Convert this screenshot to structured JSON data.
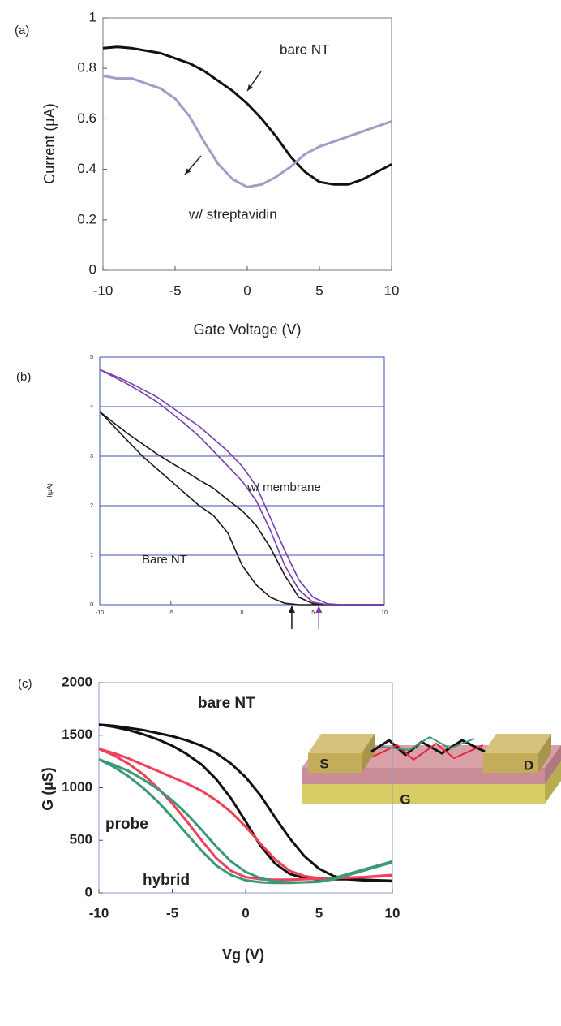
{
  "chart_data": [
    {
      "type": "line",
      "label": "(a)",
      "xlabel": "Gate Voltage (V)",
      "ylabel": "Current (µA)",
      "x": [
        -10,
        -9,
        -8,
        -7,
        -6,
        -5,
        -4,
        -3,
        -2,
        -1,
        0,
        1,
        2,
        3,
        4,
        5,
        6,
        7,
        8,
        9,
        10
      ],
      "series": [
        {
          "color": "#111111",
          "values": [
            0.88,
            0.885,
            0.88,
            0.87,
            0.86,
            0.84,
            0.82,
            0.79,
            0.75,
            0.71,
            0.66,
            0.6,
            0.53,
            0.45,
            0.39,
            0.35,
            0.34,
            0.34,
            0.36,
            0.39,
            0.42
          ]
        },
        {
          "color": "#a79ac4",
          "values": [
            0.77,
            0.76,
            0.76,
            0.74,
            0.72,
            0.68,
            0.61,
            0.51,
            0.42,
            0.36,
            0.33,
            0.34,
            0.37,
            0.41,
            0.46,
            0.49,
            0.51,
            0.53,
            0.55,
            0.57,
            0.59
          ]
        }
      ],
      "annotations": [
        "bare NT",
        "w/ streptavidin"
      ],
      "xlim": [
        -10,
        10
      ],
      "xticks": [
        -10,
        -5,
        0,
        5,
        10
      ],
      "ylim": [
        0,
        1
      ],
      "yticks": [
        0,
        0.2,
        0.4,
        0.6,
        0.8,
        1
      ],
      "grid": false
    },
    {
      "type": "line",
      "label": "(b)",
      "ylabel": "I(µA)",
      "x": [
        -10,
        -9,
        -8,
        -7,
        -6,
        -5,
        -4,
        -3,
        -2,
        -1,
        0,
        1,
        2,
        3,
        4,
        5,
        6,
        7,
        8,
        9,
        10
      ],
      "series": [
        {
          "color": "#1a1a1a",
          "values": [
            3.9,
            3.6,
            3.3,
            3.0,
            2.75,
            2.5,
            2.25,
            2.0,
            1.8,
            1.45,
            0.8,
            0.4,
            0.15,
            0.03,
            0,
            0,
            0,
            0,
            0,
            0,
            0
          ]
        },
        {
          "color": "#1a1a1a",
          "values": [
            3.9,
            3.67,
            3.45,
            3.25,
            3.05,
            2.87,
            2.7,
            2.52,
            2.35,
            2.12,
            1.9,
            1.6,
            1.15,
            0.6,
            0.15,
            0.02,
            0,
            0,
            0,
            0,
            0
          ]
        },
        {
          "color": "#7a3db0",
          "values": [
            4.75,
            4.63,
            4.5,
            4.35,
            4.2,
            4.0,
            3.8,
            3.6,
            3.35,
            3.1,
            2.8,
            2.4,
            1.75,
            1.1,
            0.5,
            0.15,
            0.02,
            0,
            0,
            0,
            0
          ]
        },
        {
          "color": "#7a3db0",
          "values": [
            4.75,
            4.6,
            4.45,
            4.28,
            4.1,
            3.88,
            3.65,
            3.4,
            3.1,
            2.8,
            2.5,
            2.1,
            1.5,
            0.8,
            0.3,
            0.05,
            0,
            0,
            0,
            0,
            0
          ]
        }
      ],
      "annotations": [
        "w/ membrane",
        "Bare NT"
      ],
      "markers": [
        {
          "x": 3.5,
          "color": "#1a1a1a"
        },
        {
          "x": 5.4,
          "color": "#7a3db0"
        }
      ],
      "xlim": [
        -10,
        10
      ],
      "xticks": [
        -10,
        -5,
        0,
        5,
        10
      ],
      "ylim": [
        0,
        5
      ],
      "yticks": [
        0,
        1,
        2,
        3,
        4,
        5
      ],
      "grid": true,
      "grid_color": "#3b4fb0"
    },
    {
      "type": "line",
      "label": "(c)",
      "xlabel": "Vg (V)",
      "ylabel": "G (µS)",
      "x": [
        -10,
        -9,
        -8,
        -7,
        -6,
        -5,
        -4,
        -3,
        -2,
        -1,
        0,
        1,
        2,
        3,
        4,
        5,
        6,
        7,
        8,
        9,
        10
      ],
      "series": [
        {
          "color": "#111111",
          "values": [
            1600,
            1590,
            1570,
            1550,
            1520,
            1490,
            1450,
            1400,
            1330,
            1230,
            1100,
            930,
            720,
            520,
            350,
            230,
            160,
            130,
            120,
            115,
            110
          ]
        },
        {
          "color": "#111111",
          "values": [
            1600,
            1580,
            1550,
            1510,
            1460,
            1400,
            1320,
            1220,
            1080,
            900,
            680,
            450,
            280,
            180,
            140,
            130,
            130,
            130,
            125,
            120,
            115
          ]
        },
        {
          "color": "#f0405a",
          "values": [
            1370,
            1330,
            1280,
            1220,
            1160,
            1100,
            1040,
            970,
            880,
            770,
            630,
            470,
            320,
            210,
            160,
            140,
            140,
            145,
            150,
            155,
            160
          ]
        },
        {
          "color": "#f0405a",
          "values": [
            1370,
            1310,
            1230,
            1130,
            1000,
            850,
            680,
            500,
            330,
            210,
            150,
            130,
            125,
            125,
            130,
            135,
            140,
            145,
            150,
            160,
            170
          ]
        },
        {
          "color": "#3a9a78",
          "values": [
            1270,
            1220,
            1160,
            1080,
            990,
            880,
            750,
            600,
            440,
            300,
            200,
            140,
            110,
            100,
            100,
            105,
            130,
            170,
            210,
            250,
            290
          ]
        },
        {
          "color": "#3a9a78",
          "values": [
            1270,
            1200,
            1110,
            1000,
            870,
            720,
            560,
            400,
            260,
            170,
            120,
            100,
            95,
            95,
            100,
            110,
            140,
            180,
            220,
            260,
            300
          ]
        }
      ],
      "annotations": [
        "bare NT",
        "probe",
        "hybrid"
      ],
      "inset_labels": [
        "S",
        "D",
        "G"
      ],
      "xlim": [
        -10,
        10
      ],
      "xticks": [
        -10,
        -5,
        0,
        5,
        10
      ],
      "ylim": [
        0,
        2000
      ],
      "yticks": [
        0,
        500,
        1000,
        1500,
        2000
      ],
      "grid": false
    }
  ]
}
